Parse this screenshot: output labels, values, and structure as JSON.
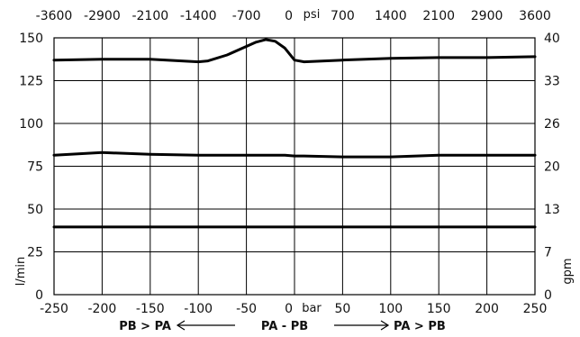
{
  "chart_data": {
    "type": "line",
    "x": [
      -250,
      -200,
      -150,
      -100,
      -90,
      -70,
      -50,
      -40,
      -30,
      -20,
      -10,
      0,
      10,
      50,
      100,
      150,
      200,
      250
    ],
    "series": [
      {
        "values": [
          137,
          137.5,
          137.5,
          136,
          136.5,
          140,
          145,
          147.5,
          149,
          148,
          144,
          137,
          136,
          137,
          138,
          138.5,
          138.5,
          139
        ]
      },
      {
        "values": [
          81.5,
          83,
          82,
          81.5,
          81.5,
          81.5,
          81.5,
          81.5,
          81.5,
          81.5,
          81.5,
          81,
          81,
          80.5,
          80.5,
          81.5,
          81.5,
          81.5
        ]
      },
      {
        "values": [
          39.5,
          39.5,
          39.5,
          39.5,
          39.5,
          39.5,
          39.5,
          39.5,
          39.5,
          39.5,
          39.5,
          39.5,
          39.5,
          39.5,
          39.5,
          39.5,
          39.5,
          39.5
        ]
      }
    ],
    "xlim": [
      -250,
      250
    ],
    "ylim": [
      0,
      150
    ],
    "bottom_axis": {
      "ticks": [
        {
          "value": -250,
          "label": "-250"
        },
        {
          "value": -200,
          "label": "-200"
        },
        {
          "value": -150,
          "label": "-150"
        },
        {
          "value": -100,
          "label": "-100"
        },
        {
          "value": -50,
          "label": "-50"
        },
        {
          "value": 0,
          "label": "0"
        },
        {
          "value": 50,
          "label": "50"
        },
        {
          "value": 100,
          "label": "100"
        },
        {
          "value": 150,
          "label": "150"
        },
        {
          "value": 200,
          "label": "200"
        },
        {
          "value": 250,
          "label": "250"
        }
      ],
      "unit": "bar"
    },
    "top_axis": {
      "ticks": [
        {
          "value": -250,
          "label": "-3600"
        },
        {
          "value": -200,
          "label": "-2900"
        },
        {
          "value": -150,
          "label": "-2100"
        },
        {
          "value": -100,
          "label": "-1400"
        },
        {
          "value": -50,
          "label": "-700"
        },
        {
          "value": 0,
          "label": "0"
        },
        {
          "value": 50,
          "label": "700"
        },
        {
          "value": 100,
          "label": "1400"
        },
        {
          "value": 150,
          "label": "2100"
        },
        {
          "value": 200,
          "label": "2900"
        },
        {
          "value": 250,
          "label": "3600"
        }
      ],
      "unit": "psi"
    },
    "left_axis": {
      "ticks": [
        {
          "value": 0,
          "label": "0"
        },
        {
          "value": 25,
          "label": "25"
        },
        {
          "value": 50,
          "label": "50"
        },
        {
          "value": 75,
          "label": "75"
        },
        {
          "value": 100,
          "label": "100"
        },
        {
          "value": 125,
          "label": "125"
        },
        {
          "value": 150,
          "label": "150"
        }
      ],
      "label": "l/min"
    },
    "right_axis": {
      "ticks": [
        {
          "value": 0,
          "label": "0"
        },
        {
          "value": 25,
          "label": "7"
        },
        {
          "value": 50,
          "label": "13"
        },
        {
          "value": 75,
          "label": "20"
        },
        {
          "value": 100,
          "label": "26"
        },
        {
          "value": 125,
          "label": "33"
        },
        {
          "value": 150,
          "label": "40"
        }
      ],
      "label": "gpm"
    },
    "grid": true,
    "annotations": {
      "left": "PB > PA",
      "center": "PA - PB",
      "right": "PA > PB"
    }
  }
}
